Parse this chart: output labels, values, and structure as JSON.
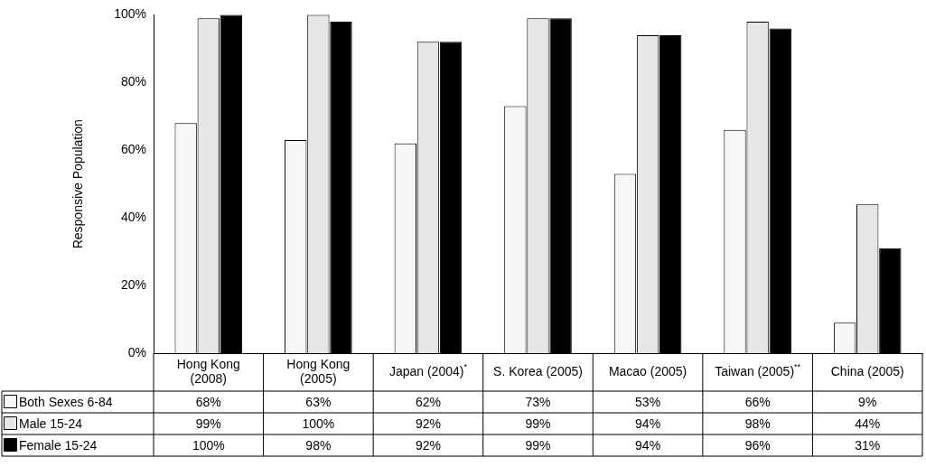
{
  "chart_data": {
    "type": "bar",
    "ylabel": "Responsive Population",
    "categories": [
      "Hong Kong (2008)",
      "Hong Kong (2005)",
      "Japan (2004)$^{*}$",
      "S. Korea (2005)",
      "Macao (2005)",
      "Taiwan (2005)$^{**}$",
      "China (2005)"
    ],
    "ylim": [
      0,
      100
    ],
    "legend": "bottom left",
    "yticks": [
      {
        "value": 0,
        "label": "0%"
      },
      {
        "value": 20,
        "label": "20%"
      },
      {
        "value": 40,
        "label": "40%"
      },
      {
        "value": 60,
        "label": "60%"
      },
      {
        "value": 80,
        "label": "80%"
      },
      {
        "value": 100,
        "label": "100%"
      }
    ],
    "series": [
      {
        "name": "Both Sexes 6-84",
        "color": "#f6f6f6",
        "values": [
          68,
          63,
          62,
          73,
          53,
          66,
          9
        ],
        "value_labels": [
          "68%",
          "63%",
          "62%",
          "73%",
          "53%",
          "66%",
          "9%"
        ]
      },
      {
        "name": "Male 15-24",
        "color": "#e6e6e6",
        "values": [
          99,
          100,
          92,
          99,
          94,
          98,
          44
        ],
        "value_labels": [
          "99%",
          "100%",
          "92%",
          "99%",
          "94%",
          "98%",
          "44%"
        ]
      },
      {
        "name": "Female 15-24",
        "color": "#000000",
        "values": [
          100,
          98,
          92,
          99,
          94,
          96,
          31
        ],
        "value_labels": [
          "100%",
          "98%",
          "92%",
          "99%",
          "94%",
          "96%",
          "31%"
        ]
      }
    ]
  }
}
